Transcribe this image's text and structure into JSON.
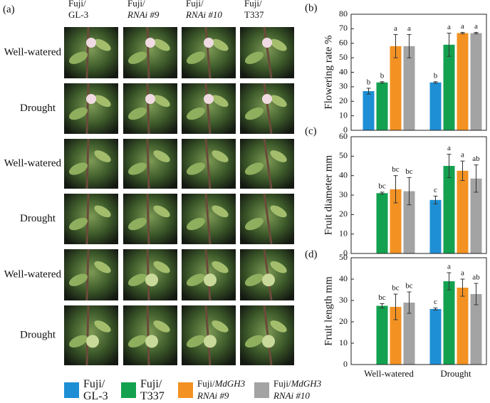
{
  "photo_panel": {
    "label": "(a)",
    "columns": [
      [
        "Fuji/",
        "GL-3"
      ],
      [
        "Fuji/",
        "RNAi #9"
      ],
      [
        "Fuji/",
        "RNAi #10"
      ],
      [
        "Fuji/",
        "T337"
      ]
    ],
    "rows": [
      "Well-watered",
      "Drought",
      "Well-watered",
      "Drought",
      "Well-watered",
      "Drought"
    ]
  },
  "chart_data": [
    {
      "type": "bar",
      "panel": "(b)",
      "ylabel": "Flowering rate %",
      "categories": [
        null,
        null
      ],
      "ylim": [
        0,
        80
      ],
      "yticks": [
        0,
        10,
        20,
        30,
        40,
        50,
        60,
        70,
        80
      ],
      "series": [
        {
          "color": "#1e8fd5",
          "values": [
            27,
            33
          ],
          "errors": [
            2,
            0.5
          ],
          "letters": [
            "b",
            "b"
          ]
        },
        {
          "color": "#13a150",
          "values": [
            33,
            59
          ],
          "errors": [
            0.5,
            8
          ],
          "letters": [
            "b",
            "a"
          ]
        },
        {
          "color": "#f39222",
          "values": [
            58,
            67
          ],
          "errors": [
            8,
            0.5
          ],
          "letters": [
            "a",
            "a"
          ]
        },
        {
          "color": "#a3a3a3",
          "values": [
            58,
            67
          ],
          "errors": [
            8,
            0.5
          ],
          "letters": [
            "a",
            "a"
          ]
        }
      ]
    },
    {
      "type": "bar",
      "panel": "(c)",
      "ylabel": "Fruit diameter mm",
      "categories": [
        null,
        null
      ],
      "ylim": [
        0,
        60
      ],
      "yticks": [
        0,
        10,
        20,
        30,
        40,
        50,
        60
      ],
      "series": [
        {
          "color": "#1e8fd5",
          "values": [
            null,
            27.5
          ],
          "errors": [
            null,
            2
          ],
          "letters": [
            null,
            "c"
          ]
        },
        {
          "color": "#13a150",
          "values": [
            31,
            45
          ],
          "errors": [
            0.5,
            6
          ],
          "letters": [
            "bc",
            "a"
          ]
        },
        {
          "color": "#f39222",
          "values": [
            33,
            42.5
          ],
          "errors": [
            7,
            5
          ],
          "letters": [
            "bc",
            "a"
          ]
        },
        {
          "color": "#a3a3a3",
          "values": [
            32,
            38.5
          ],
          "errors": [
            7,
            7
          ],
          "letters": [
            "bc",
            "ab"
          ]
        }
      ]
    },
    {
      "type": "bar",
      "panel": "(d)",
      "ylabel": "Fruit length mm",
      "categories": [
        "Well-watered",
        "Drought"
      ],
      "ylim": [
        0,
        50
      ],
      "yticks": [
        0,
        10,
        20,
        30,
        40,
        50
      ],
      "series": [
        {
          "color": "#1e8fd5",
          "values": [
            null,
            26
          ],
          "errors": [
            null,
            0.5
          ],
          "letters": [
            null,
            "c"
          ]
        },
        {
          "color": "#13a150",
          "values": [
            27.5,
            39
          ],
          "errors": [
            1,
            4
          ],
          "letters": [
            "bc",
            "a"
          ]
        },
        {
          "color": "#f39222",
          "values": [
            27,
            36
          ],
          "errors": [
            6,
            4
          ],
          "letters": [
            "bc",
            "a"
          ]
        },
        {
          "color": "#a3a3a3",
          "values": [
            29,
            33
          ],
          "errors": [
            5,
            5
          ],
          "letters": [
            "bc",
            "ab"
          ]
        }
      ]
    }
  ],
  "legend": [
    {
      "lines": [
        [
          "Fuji/"
        ],
        [
          "GL-3"
        ]
      ]
    },
    {
      "lines": [
        [
          "Fuji/"
        ],
        [
          "T337"
        ]
      ]
    },
    {
      "lines": [
        [
          "Fuji/",
          "MdGH3"
        ],
        [
          "RNAi #9"
        ]
      ]
    },
    {
      "lines": [
        [
          "Fuji/",
          "MdGH3"
        ],
        [
          "RNAi #10"
        ]
      ]
    }
  ]
}
